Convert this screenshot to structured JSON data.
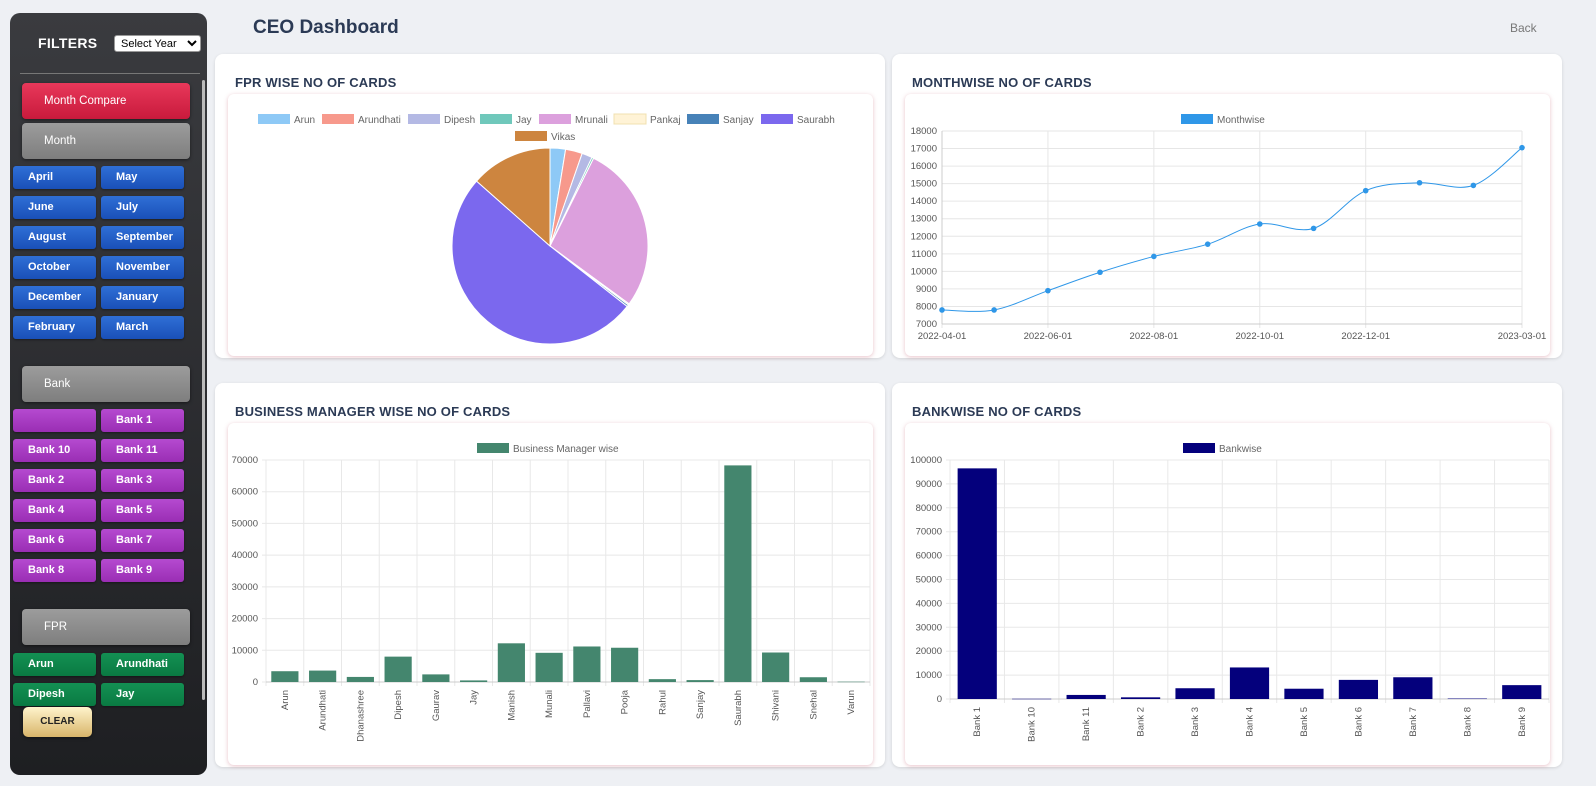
{
  "header": {
    "title": "CEO Dashboard",
    "back_label": "Back"
  },
  "sidebar": {
    "filters_label": "FILTERS",
    "year_select": "Select Year",
    "month_compare": "Month Compare",
    "month_section": "Month",
    "months": [
      "April",
      "May",
      "June",
      "July",
      "August",
      "September",
      "October",
      "November",
      "December",
      "January",
      "February",
      "March"
    ],
    "bank_section": "Bank",
    "banks": [
      "",
      "Bank 1",
      "Bank 10",
      "Bank 11",
      "Bank 2",
      "Bank 3",
      "Bank 4",
      "Bank 5",
      "Bank 6",
      "Bank 7",
      "Bank 8",
      "Bank 9"
    ],
    "fpr_section": "FPR",
    "fprs": [
      "Arun",
      "Arundhati",
      "Dipesh",
      "Jay"
    ],
    "clear_label": "CLEAR"
  },
  "cards": {
    "fpr": "FPR WISE NO OF CARDS",
    "month": "MONTHWISE NO OF CARDS",
    "bm": "BUSINESS MANAGER WISE NO OF CARDS",
    "bank": "BANKWISE NO OF CARDS"
  },
  "chart_data": [
    {
      "type": "pie",
      "labels": [
        "Arun",
        "Arundhati",
        "Dipesh",
        "Jay",
        "Mrunali",
        "Pankaj",
        "Sanjay",
        "Saurabh",
        "Vikas"
      ],
      "values": [
        3400,
        3700,
        2300,
        400,
        37000,
        300,
        400,
        68000,
        18000
      ],
      "colors": [
        "#8ec9f6",
        "#f7998c",
        "#b4b9e4",
        "#6fc8bb",
        "#dca0dd",
        "#fff3d6",
        "#4782b8",
        "#7b68ee",
        "#cd853f"
      ],
      "legend": "top"
    },
    {
      "type": "line",
      "series": [
        {
          "name": "Monthwise",
          "color": "#2f97e8",
          "x": [
            "2022-04-01",
            "2022-05-01",
            "2022-06-01",
            "2022-07-01",
            "2022-08-01",
            "2022-09-01",
            "2022-10-01",
            "2022-11-01",
            "2022-12-01",
            "2023-01-01",
            "2023-02-01",
            "2023-03-01"
          ],
          "values": [
            7800,
            7800,
            8900,
            9950,
            10850,
            11550,
            12700,
            12450,
            14600,
            15050,
            14900,
            17050
          ]
        }
      ],
      "xticks": [
        "2022-04-01",
        "2022-06-01",
        "2022-08-01",
        "2022-10-01",
        "2022-12-01",
        "2023-03-01"
      ],
      "ylim": [
        7000,
        18000
      ],
      "ystep": 1000,
      "grid": true,
      "legend": "top"
    },
    {
      "type": "bar",
      "series": [
        {
          "name": "Business Manager wise",
          "color": "#44866e"
        }
      ],
      "categories": [
        "Arun",
        "Arundhati",
        "Dhanashree",
        "Dipesh",
        "Gaurav",
        "Jay",
        "Manish",
        "Munali",
        "Pallavi",
        "Pooja",
        "Rahul",
        "Sanjay",
        "Saurabh",
        "Shivani",
        "Snehal",
        "Varun"
      ],
      "values": [
        3400,
        3600,
        1600,
        8000,
        2400,
        500,
        12200,
        9200,
        11200,
        10800,
        900,
        600,
        68300,
        9300,
        1500,
        100
      ],
      "ylim": [
        0,
        70000
      ],
      "ystep": 10000,
      "grid": true,
      "legend": "top"
    },
    {
      "type": "bar",
      "series": [
        {
          "name": "Bankwise",
          "color": "#04007c"
        }
      ],
      "categories": [
        "Bank 1",
        "Bank 10",
        "Bank 11",
        "Bank 2",
        "Bank 3",
        "Bank 4",
        "Bank 5",
        "Bank 6",
        "Bank 7",
        "Bank 8",
        "Bank 9"
      ],
      "values": [
        96500,
        100,
        1700,
        700,
        4500,
        13200,
        4300,
        8000,
        9100,
        200,
        5800
      ],
      "ylim": [
        0,
        100000
      ],
      "ystep": 10000,
      "grid": true,
      "legend": "top"
    }
  ]
}
